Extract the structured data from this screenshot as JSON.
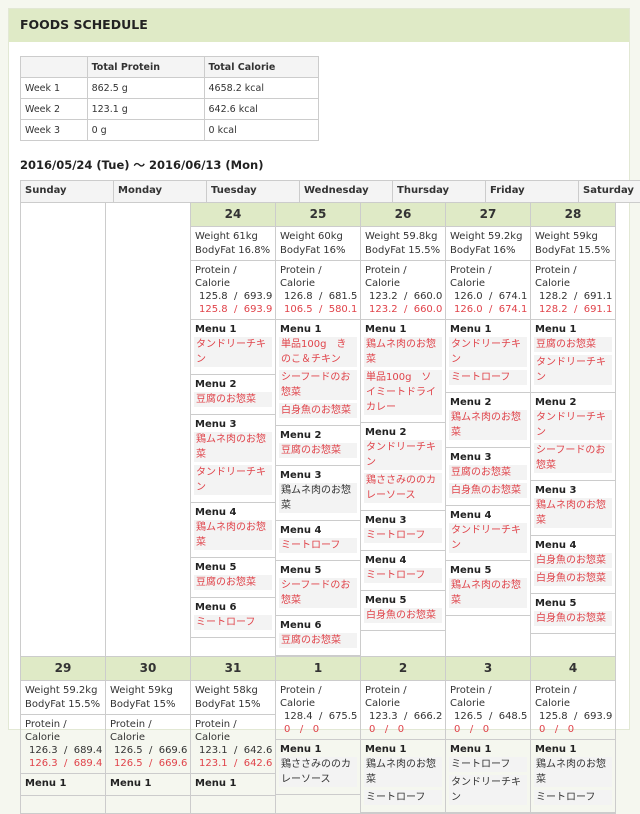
{
  "title": "FOODS SCHEDULE",
  "summary": {
    "headers": [
      "",
      "Total Protein",
      "Total Calorie"
    ],
    "rows": [
      [
        "Week 1",
        "862.5 g",
        "4658.2 kcal"
      ],
      [
        "Week 2",
        "123.1 g",
        "642.6 kcal"
      ],
      [
        "Week 3",
        "0 g",
        "0 kcal"
      ]
    ]
  },
  "range": "2016/05/24 (Tue) ～ 2016/06/13 (Mon)",
  "weekdays": [
    "Sunday",
    "Monday",
    "Tuesday",
    "Wednesday",
    "Thursday",
    "Friday",
    "Saturday"
  ],
  "pc_label": "Protein / Calorie",
  "colors": {
    "header": "#dfeac6",
    "actual": "#e0434a"
  },
  "weeks": [
    {
      "days": [
        null,
        null,
        {
          "day": "24",
          "weight": "Weight 61kg",
          "bodyfat": "BodyFat 16.8%",
          "planned": "125.8  /  693.9",
          "actual": "125.8  /  693.9",
          "menus": [
            {
              "label": "Menu 1",
              "items": [
                {
                  "text": "タンドリーチキン",
                  "red": true
                }
              ]
            },
            {
              "label": "Menu 2",
              "items": [
                {
                  "text": "豆腐のお惣菜",
                  "red": true
                }
              ]
            },
            {
              "label": "Menu 3",
              "items": [
                {
                  "text": "鶏ムネ肉のお惣菜",
                  "red": true
                },
                {
                  "text": "タンドリーチキン",
                  "red": true
                }
              ]
            },
            {
              "label": "Menu 4",
              "items": [
                {
                  "text": "鶏ムネ肉のお惣菜",
                  "red": true
                }
              ]
            },
            {
              "label": "Menu 5",
              "items": [
                {
                  "text": "豆腐のお惣菜",
                  "red": true
                }
              ]
            },
            {
              "label": "Menu 6",
              "items": [
                {
                  "text": "ミートローフ",
                  "red": true
                }
              ]
            }
          ]
        },
        {
          "day": "25",
          "weight": "Weight 60kg",
          "bodyfat": "BodyFat 16%",
          "planned": "126.8  /  681.5",
          "actual": "106.5  /  580.1",
          "menus": [
            {
              "label": "Menu 1",
              "items": [
                {
                  "text": "単品100g　きのこ＆チキン",
                  "red": true
                },
                {
                  "text": "シーフードのお惣菜",
                  "red": true
                },
                {
                  "text": "白身魚のお惣菜",
                  "red": true
                }
              ]
            },
            {
              "label": "Menu 2",
              "items": [
                {
                  "text": "豆腐のお惣菜",
                  "red": true
                }
              ]
            },
            {
              "label": "Menu 3",
              "items": [
                {
                  "text": "鶏ムネ肉のお惣菜",
                  "red": false
                }
              ]
            },
            {
              "label": "Menu 4",
              "items": [
                {
                  "text": "ミートローフ",
                  "red": true
                }
              ]
            },
            {
              "label": "Menu 5",
              "items": [
                {
                  "text": "シーフードのお惣菜",
                  "red": true
                }
              ]
            },
            {
              "label": "Menu 6",
              "items": [
                {
                  "text": "豆腐のお惣菜",
                  "red": true
                }
              ]
            }
          ]
        },
        {
          "day": "26",
          "weight": "Weight 59.8kg",
          "bodyfat": "BodyFat 15.5%",
          "planned": "123.2  /  660.0",
          "actual": "123.2  /  660.0",
          "menus": [
            {
              "label": "Menu 1",
              "items": [
                {
                  "text": "鶏ムネ肉のお惣菜",
                  "red": true
                },
                {
                  "text": "単品100g　ソイミートドライカレー",
                  "red": true
                }
              ]
            },
            {
              "label": "Menu 2",
              "items": [
                {
                  "text": "タンドリーチキン",
                  "red": true
                },
                {
                  "text": "鶏ささみののカレーソース",
                  "red": true
                }
              ]
            },
            {
              "label": "Menu 3",
              "items": [
                {
                  "text": "ミートローフ",
                  "red": true
                }
              ]
            },
            {
              "label": "Menu 4",
              "items": [
                {
                  "text": "ミートローフ",
                  "red": true
                }
              ]
            },
            {
              "label": "Menu 5",
              "items": [
                {
                  "text": "白身魚のお惣菜",
                  "red": true
                }
              ]
            }
          ]
        },
        {
          "day": "27",
          "weight": "Weight 59.2kg",
          "bodyfat": "BodyFat 16%",
          "planned": "126.0  /  674.1",
          "actual": "126.0  /  674.1",
          "menus": [
            {
              "label": "Menu 1",
              "items": [
                {
                  "text": "タンドリーチキン",
                  "red": true
                },
                {
                  "text": "ミートローフ",
                  "red": true
                }
              ]
            },
            {
              "label": "Menu 2",
              "items": [
                {
                  "text": "鶏ムネ肉のお惣菜",
                  "red": true
                }
              ]
            },
            {
              "label": "Menu 3",
              "items": [
                {
                  "text": "豆腐のお惣菜",
                  "red": true
                },
                {
                  "text": "白身魚のお惣菜",
                  "red": true
                }
              ]
            },
            {
              "label": "Menu 4",
              "items": [
                {
                  "text": "タンドリーチキン",
                  "red": true
                }
              ]
            },
            {
              "label": "Menu 5",
              "items": [
                {
                  "text": "鶏ムネ肉のお惣菜",
                  "red": true
                }
              ]
            }
          ]
        },
        {
          "day": "28",
          "weight": "Weight 59kg",
          "bodyfat": "BodyFat 15.5%",
          "planned": "128.2  /  691.1",
          "actual": "128.2  /  691.1",
          "menus": [
            {
              "label": "Menu 1",
              "items": [
                {
                  "text": "豆腐のお惣菜",
                  "red": true
                },
                {
                  "text": "タンドリーチキン",
                  "red": true
                }
              ]
            },
            {
              "label": "Menu 2",
              "items": [
                {
                  "text": "タンドリーチキン",
                  "red": true
                },
                {
                  "text": "シーフードのお惣菜",
                  "red": true
                }
              ]
            },
            {
              "label": "Menu 3",
              "items": [
                {
                  "text": "鶏ムネ肉のお惣菜",
                  "red": true
                }
              ]
            },
            {
              "label": "Menu 4",
              "items": [
                {
                  "text": "白身魚のお惣菜",
                  "red": true
                },
                {
                  "text": "白身魚のお惣菜",
                  "red": true
                }
              ]
            },
            {
              "label": "Menu 5",
              "items": [
                {
                  "text": "白身魚のお惣菜",
                  "red": true
                }
              ]
            }
          ]
        }
      ]
    },
    {
      "days": [
        {
          "day": "29",
          "weight": "Weight 59.2kg",
          "bodyfat": "BodyFat 15.5%",
          "planned": "126.3  /  689.4",
          "actual": "126.3  /  689.4",
          "menus": [
            {
              "label": "Menu 1",
              "items": []
            }
          ]
        },
        {
          "day": "30",
          "weight": "Weight 59kg",
          "bodyfat": "BodyFat 15%",
          "planned": "126.5  /  669.6",
          "actual": "126.5  /  669.6",
          "menus": [
            {
              "label": "Menu 1",
              "items": []
            }
          ]
        },
        {
          "day": "31",
          "weight": "Weight 58kg",
          "bodyfat": "BodyFat 15%",
          "planned": "123.1  /  642.6",
          "actual": "123.1  /  642.6",
          "menus": [
            {
              "label": "Menu 1",
              "items": []
            }
          ]
        },
        {
          "day": "1",
          "planned": "128.4  /  675.5",
          "actual": "0   /   0",
          "menus": [
            {
              "label": "Menu 1",
              "items": [
                {
                  "text": "鶏ささみののカレーソース",
                  "red": false
                }
              ]
            }
          ]
        },
        {
          "day": "2",
          "planned": "123.3  /  666.2",
          "actual": "0   /   0",
          "menus": [
            {
              "label": "Menu 1",
              "items": [
                {
                  "text": "鶏ムネ肉のお惣菜",
                  "red": false
                },
                {
                  "text": "ミートローフ",
                  "red": false
                }
              ]
            }
          ]
        },
        {
          "day": "3",
          "planned": "126.5  /  648.5",
          "actual": "0   /   0",
          "menus": [
            {
              "label": "Menu 1",
              "items": [
                {
                  "text": "ミートローフ",
                  "red": false
                },
                {
                  "text": "タンドリーチキン",
                  "red": false
                }
              ]
            }
          ]
        },
        {
          "day": "4",
          "planned": "125.8  /  693.9",
          "actual": "0   /   0",
          "menus": [
            {
              "label": "Menu 1",
              "items": [
                {
                  "text": "鶏ムネ肉のお惣菜",
                  "red": false
                },
                {
                  "text": "ミートローフ",
                  "red": false
                }
              ]
            }
          ]
        }
      ]
    }
  ]
}
